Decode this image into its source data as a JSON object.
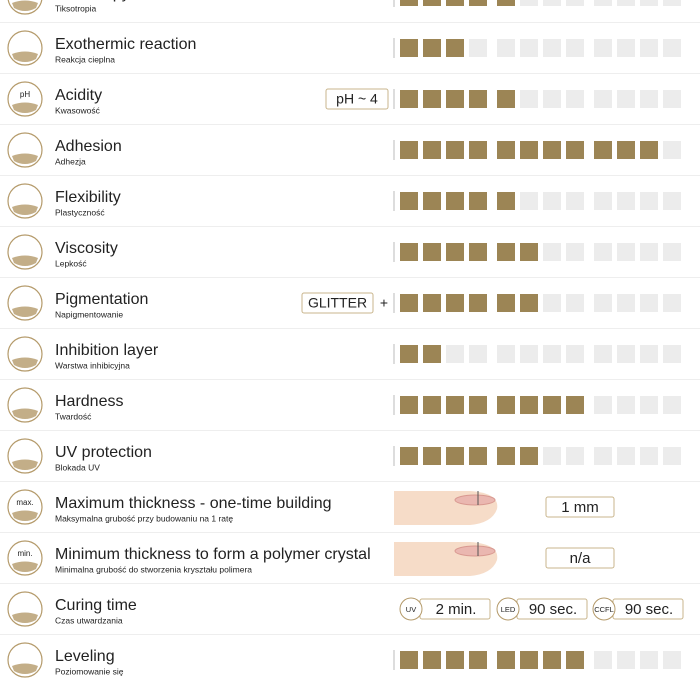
{
  "scale_steps": 12,
  "rows": [
    {
      "title": "Thixotropy",
      "subtitle": "Tiksotropia",
      "rating": 5
    },
    {
      "title": "Exothermic reaction",
      "subtitle": "Reakcja cieplna",
      "rating": 3
    },
    {
      "title": "Acidity",
      "subtitle": "Kwasowość",
      "icon_label": "pH",
      "tag": "pH ~ 4",
      "rating": 5
    },
    {
      "title": "Adhesion",
      "subtitle": "Adhezja",
      "rating": 11
    },
    {
      "title": "Flexibility",
      "subtitle": "Plastyczność",
      "rating": 5
    },
    {
      "title": "Viscosity",
      "subtitle": "Lepkość",
      "rating": 6
    },
    {
      "title": "Pigmentation",
      "subtitle": "Napigmentowanie",
      "tag": "GLITTER",
      "tag_suffix": "+",
      "rating": 6
    },
    {
      "title": "Inhibition layer",
      "subtitle": "Warstwa inhibicyjna",
      "rating": 2
    },
    {
      "title": "Hardness",
      "subtitle": "Twardość",
      "rating": 8
    },
    {
      "title": "UV protection",
      "subtitle": "Blokada UV",
      "rating": 6
    },
    {
      "title": "Maximum thickness - one-time building",
      "subtitle": "Maksymalna grubość przy budowaniu na 1 ratę",
      "icon_label": "max.",
      "value": "1 mm"
    },
    {
      "title": "Minimum thickness to form a polymer crystal",
      "subtitle": "Minimalna grubość do stworzenia kryształu polimera",
      "icon_label": "min.",
      "value": "n/a"
    },
    {
      "title": "Curing time",
      "subtitle": "Czas utwardzania",
      "curing": [
        {
          "label": "UV",
          "value": "2 min."
        },
        {
          "label": "LED",
          "value": "90 sec."
        },
        {
          "label": "CCFL",
          "value": "90 sec."
        }
      ]
    },
    {
      "title": "Leveling",
      "subtitle": "Poziomowanie się",
      "rating": 8
    }
  ]
}
